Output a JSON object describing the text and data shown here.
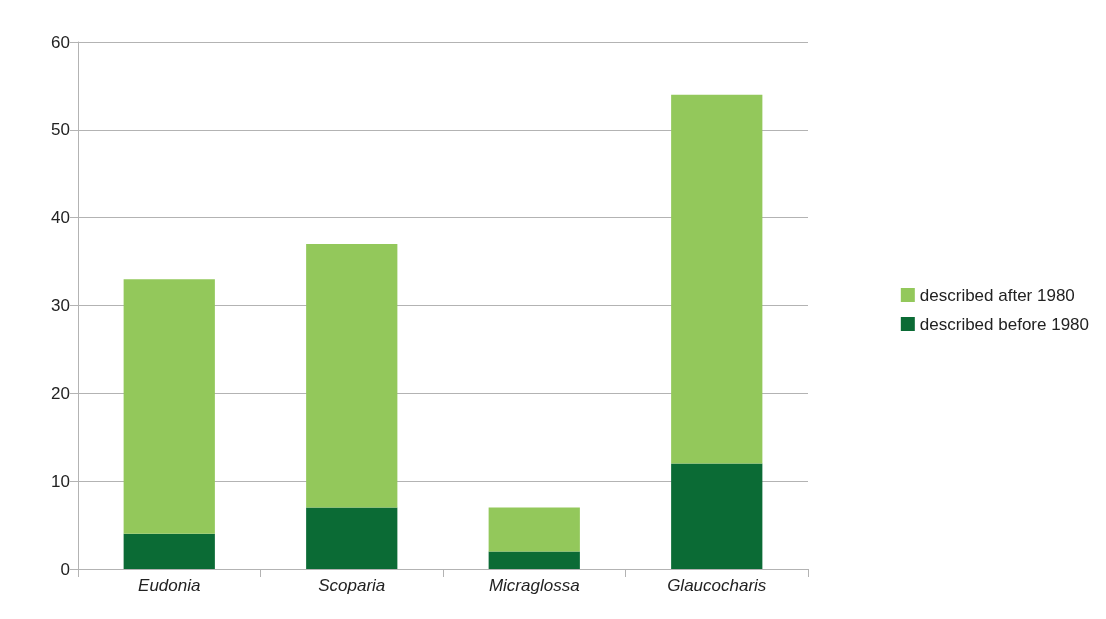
{
  "chart_data": {
    "type": "bar",
    "stacked": true,
    "categories": [
      "Eudonia",
      "Scoparia",
      "Micraglossa",
      "Glaucocharis"
    ],
    "series": [
      {
        "name": "described before 1980",
        "color": "#0b6b35",
        "values": [
          4,
          7,
          2,
          12
        ]
      },
      {
        "name": "described after 1980",
        "color": "#93c85b",
        "values": [
          29,
          30,
          5,
          42
        ]
      }
    ],
    "ylim": [
      0,
      60
    ],
    "yticks": [
      0,
      10,
      20,
      30,
      40,
      50,
      60
    ],
    "grid": "y",
    "legend": "right"
  }
}
